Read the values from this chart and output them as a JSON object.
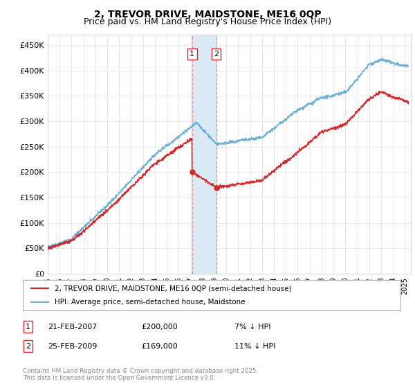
{
  "title": "2, TREVOR DRIVE, MAIDSTONE, ME16 0QP",
  "subtitle": "Price paid vs. HM Land Registry's House Price Index (HPI)",
  "ylabel_vals": [
    0,
    50000,
    100000,
    150000,
    200000,
    250000,
    300000,
    350000,
    400000,
    450000
  ],
  "ylim": [
    0,
    470000
  ],
  "xlim_start": 1995.0,
  "xlim_end": 2025.5,
  "transaction1_date": 2007.13,
  "transaction1_price": 200000,
  "transaction2_date": 2009.15,
  "transaction2_price": 169000,
  "hpi_color": "#6baed6",
  "price_color": "#d62728",
  "transaction_box_color": "#d62728",
  "shade_color": "#daeaf5",
  "legend_label_price": "2, TREVOR DRIVE, MAIDSTONE, ME16 0QP (semi-detached house)",
  "legend_label_hpi": "HPI: Average price, semi-detached house, Maidstone",
  "footnote": "Contains HM Land Registry data © Crown copyright and database right 2025.\nThis data is licensed under the Open Government Licence v3.0.",
  "title_fontsize": 10,
  "subtitle_fontsize": 9,
  "background_color": "#ffffff"
}
